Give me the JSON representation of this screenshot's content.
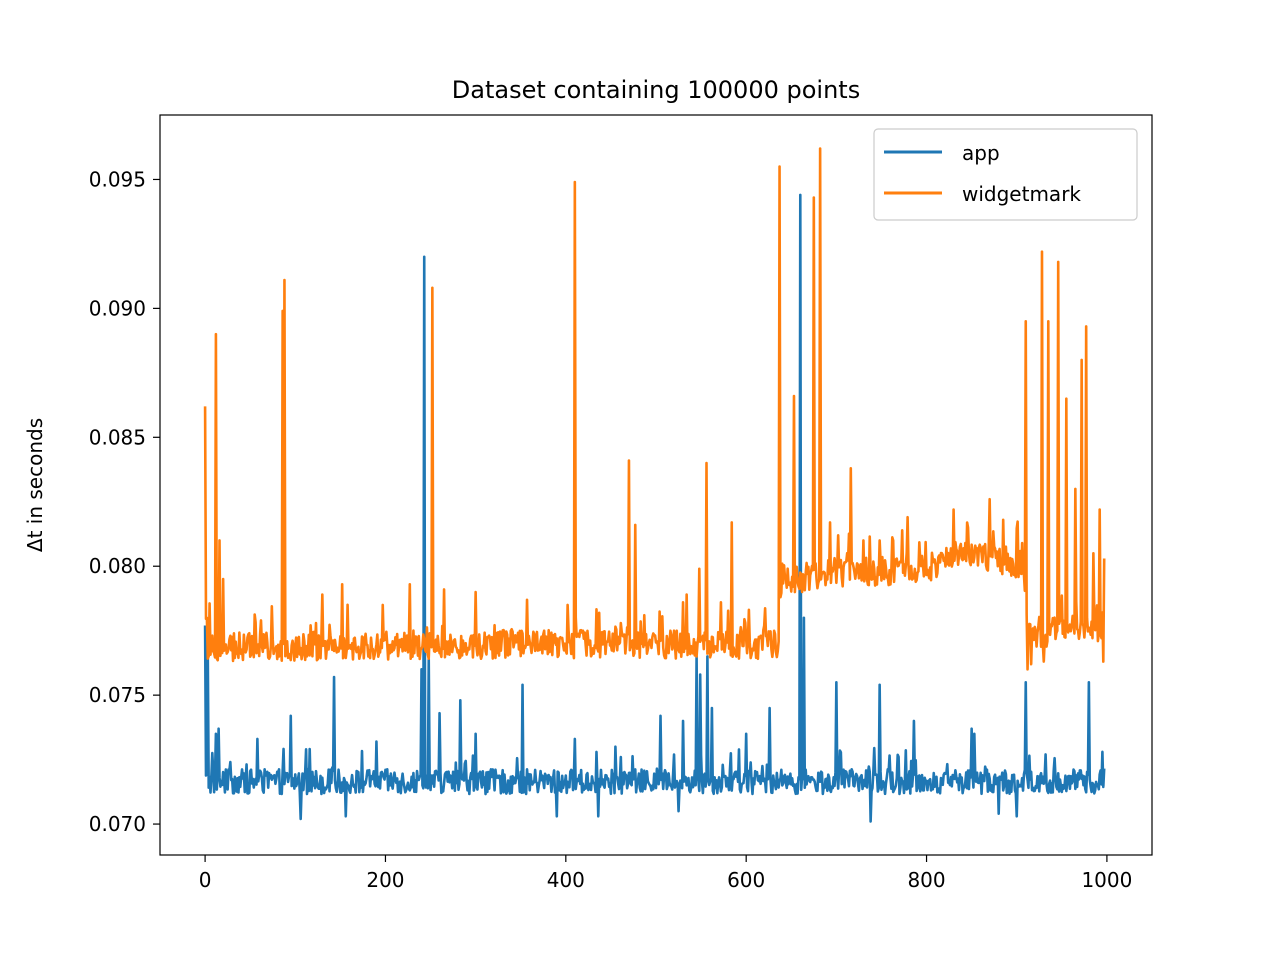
{
  "chart_data": {
    "type": "line",
    "title": "Dataset containing 100000 points",
    "xlabel": "",
    "ylabel": "Δt in seconds",
    "xlim": [
      -50,
      1050
    ],
    "ylim": [
      0.0688,
      0.0975
    ],
    "xticks": [
      0,
      200,
      400,
      600,
      800,
      1000
    ],
    "xtick_labels": [
      "0",
      "200",
      "400",
      "600",
      "800",
      "1000"
    ],
    "yticks": [
      0.07,
      0.075,
      0.08,
      0.085,
      0.09,
      0.095
    ],
    "ytick_labels": [
      "0.070",
      "0.075",
      "0.080",
      "0.085",
      "0.090",
      "0.095"
    ],
    "grid": false,
    "legend_position": "top-right",
    "x_range": [
      0,
      997
    ],
    "series": [
      {
        "name": "app",
        "color": "#1f77b4",
        "baseline": 0.0715,
        "noise": 0.0006,
        "minor_spike_every": 13,
        "minor_spike_height": 0.0015,
        "spikes": [
          [
            0,
            0.0777
          ],
          [
            3,
            0.0765
          ],
          [
            12,
            0.0735
          ],
          [
            15,
            0.0737
          ],
          [
            58,
            0.0733
          ],
          [
            95,
            0.0742
          ],
          [
            112,
            0.0729
          ],
          [
            143,
            0.0757
          ],
          [
            190,
            0.0732
          ],
          [
            240,
            0.076
          ],
          [
            243,
            0.092
          ],
          [
            248,
            0.0764
          ],
          [
            260,
            0.0743
          ],
          [
            283,
            0.0748
          ],
          [
            300,
            0.0735
          ],
          [
            352,
            0.0754
          ],
          [
            410,
            0.0733
          ],
          [
            455,
            0.073
          ],
          [
            505,
            0.0742
          ],
          [
            530,
            0.074
          ],
          [
            545,
            0.0765
          ],
          [
            549,
            0.0758
          ],
          [
            557,
            0.0765
          ],
          [
            562,
            0.0745
          ],
          [
            600,
            0.0735
          ],
          [
            626,
            0.0745
          ],
          [
            660,
            0.0944
          ],
          [
            664,
            0.078
          ],
          [
            700,
            0.0755
          ],
          [
            748,
            0.0754
          ],
          [
            786,
            0.074
          ],
          [
            853,
            0.0735
          ],
          [
            850,
            0.0737
          ],
          [
            910,
            0.0755
          ],
          [
            932,
            0.0727
          ],
          [
            980,
            0.0755
          ],
          [
            995,
            0.0728
          ]
        ],
        "dips": [
          [
            106,
            0.0702
          ],
          [
            156,
            0.0703
          ],
          [
            390,
            0.0703
          ],
          [
            436,
            0.0703
          ],
          [
            525,
            0.0705
          ],
          [
            738,
            0.0701
          ],
          [
            880,
            0.0704
          ],
          [
            900,
            0.0703
          ]
        ]
      },
      {
        "name": "widgetmark",
        "color": "#ff7f0e",
        "baseline": 0.0768,
        "noise": 0.0007,
        "minor_spike_every": 9,
        "minor_spike_height": 0.0018,
        "spikes": [
          [
            0,
            0.0862
          ],
          [
            2,
            0.078
          ],
          [
            12,
            0.089
          ],
          [
            16,
            0.081
          ],
          [
            20,
            0.0795
          ],
          [
            86,
            0.0899
          ],
          [
            88,
            0.0911
          ],
          [
            130,
            0.0789
          ],
          [
            152,
            0.0793
          ],
          [
            227,
            0.0793
          ],
          [
            252,
            0.0908
          ],
          [
            265,
            0.0791
          ],
          [
            300,
            0.079
          ],
          [
            357,
            0.0787
          ],
          [
            402,
            0.0785
          ],
          [
            410,
            0.0949
          ],
          [
            470,
            0.0841
          ],
          [
            477,
            0.0816
          ],
          [
            487,
            0.0781
          ],
          [
            530,
            0.0786
          ],
          [
            534,
            0.0789
          ],
          [
            548,
            0.0799
          ],
          [
            556,
            0.084
          ],
          [
            572,
            0.0786
          ],
          [
            584,
            0.0817
          ],
          [
            637,
            0.0955
          ],
          [
            640,
            0.0801
          ],
          [
            653,
            0.0866
          ],
          [
            662,
            0.079
          ],
          [
            675,
            0.0943
          ],
          [
            682,
            0.0962
          ],
          [
            693,
            0.0817
          ],
          [
            702,
            0.0812
          ],
          [
            716,
            0.0838
          ],
          [
            730,
            0.081
          ],
          [
            748,
            0.081
          ],
          [
            763,
            0.081
          ],
          [
            779,
            0.0819
          ],
          [
            795,
            0.0804
          ],
          [
            830,
            0.0822
          ],
          [
            846,
            0.0815
          ],
          [
            870,
            0.0826
          ],
          [
            885,
            0.0818
          ],
          [
            906,
            0.0809
          ],
          [
            910,
            0.0895
          ],
          [
            928,
            0.0922
          ],
          [
            935,
            0.0895
          ],
          [
            946,
            0.0918
          ],
          [
            955,
            0.0865
          ],
          [
            965,
            0.083
          ],
          [
            972,
            0.088
          ],
          [
            977,
            0.0893
          ],
          [
            985,
            0.0805
          ],
          [
            992,
            0.0822
          ],
          [
            997,
            0.0803
          ]
        ],
        "dips": [
          [
            912,
            0.076
          ],
          [
            916,
            0.0762
          ],
          [
            930,
            0.0763
          ],
          [
            996,
            0.0763
          ]
        ],
        "level_segments": [
          [
            0,
            0.0768
          ],
          [
            20,
            0.0767
          ],
          [
            300,
            0.0768
          ],
          [
            500,
            0.0768
          ],
          [
            636,
            0.0768
          ],
          [
            640,
            0.0793
          ],
          [
            700,
            0.0796
          ],
          [
            800,
            0.0797
          ],
          [
            830,
            0.0804
          ],
          [
            880,
            0.0801
          ],
          [
            906,
            0.0799
          ],
          [
            912,
            0.0772
          ],
          [
            997,
            0.0775
          ]
        ]
      }
    ]
  }
}
